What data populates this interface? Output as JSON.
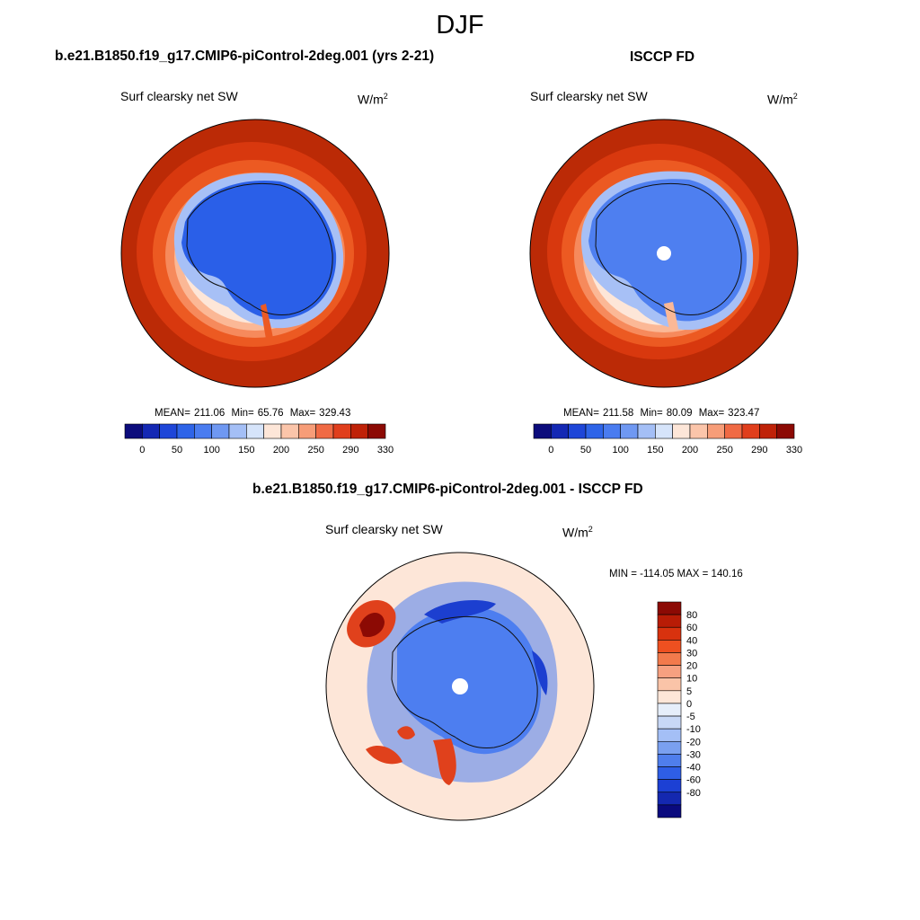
{
  "season": "DJF",
  "units": {
    "base": "W/m",
    "exp": "2"
  },
  "panels": {
    "model": {
      "title": "b.e21.B1850.f19_g17.CMIP6-piControl-2deg.001 (yrs 2-21)",
      "variable": "Surf clearsky net SW",
      "stats": {
        "mean_label": "MEAN=",
        "mean": "211.06",
        "min_label": "Min=",
        "min": "65.76",
        "max_label": "Max=",
        "max": "329.43"
      }
    },
    "obs": {
      "title": "ISCCP FD",
      "variable": "Surf clearsky net SW",
      "stats": {
        "mean_label": "MEAN=",
        "mean": "211.58",
        "min_label": "Min=",
        "min": "80.09",
        "max_label": "Max=",
        "max": "323.47"
      }
    },
    "diff": {
      "title": "b.e21.B1850.f19_g17.CMIP6-piControl-2deg.001 - ISCCP FD",
      "variable": "Surf clearsky net SW",
      "minmax": "MIN = -114.05 MAX = 140.16"
    }
  },
  "colorbars": {
    "abs": {
      "colors": [
        "#0c0c7c",
        "#1428b4",
        "#1e46d8",
        "#2e64e8",
        "#4a7cf0",
        "#6f98f2",
        "#a4bff6",
        "#d6e4fa",
        "#fde6d8",
        "#fbc5aa",
        "#f79d78",
        "#f06a44",
        "#e03e1c",
        "#bf2208",
        "#8c0a04"
      ],
      "tick_labels": [
        "0",
        "50",
        "100",
        "150",
        "200",
        "250",
        "290",
        "330"
      ]
    },
    "diff": {
      "colors": [
        "#8c0a04",
        "#b81c06",
        "#d8320e",
        "#ee5020",
        "#f27a4c",
        "#f6a080",
        "#fac4a8",
        "#fde6d8",
        "#e6eefa",
        "#c8d8f6",
        "#a4bff6",
        "#7aa0f0",
        "#4f7eec",
        "#2e5ee6",
        "#1c40d4",
        "#1428b0",
        "#0a0a7e"
      ],
      "tick_labels": [
        "80",
        "60",
        "40",
        "30",
        "20",
        "10",
        "5",
        "0",
        "-5",
        "-10",
        "-20",
        "-30",
        "-40",
        "-60",
        "-80"
      ]
    }
  },
  "map_colors": {
    "outer": "#bb2a06",
    "ring1": "#d8380e",
    "ring2": "#ec5a22",
    "ring3": "#f68a5c",
    "ring4": "#fbb896",
    "ring5": "#fde6d8",
    "ice_edge": "#a7c0f6",
    "ice": "#2a5fe8",
    "ice_obs": "#4e7ff0",
    "pole": "#ffffff",
    "diff_bg": "#fde6d8",
    "diff_blue": "#4d7ef0",
    "diff_dark_blue": "#1c3fd0",
    "diff_red": "#e0411c",
    "diff_dark_red": "#8c0a04",
    "coast": "#111111"
  }
}
